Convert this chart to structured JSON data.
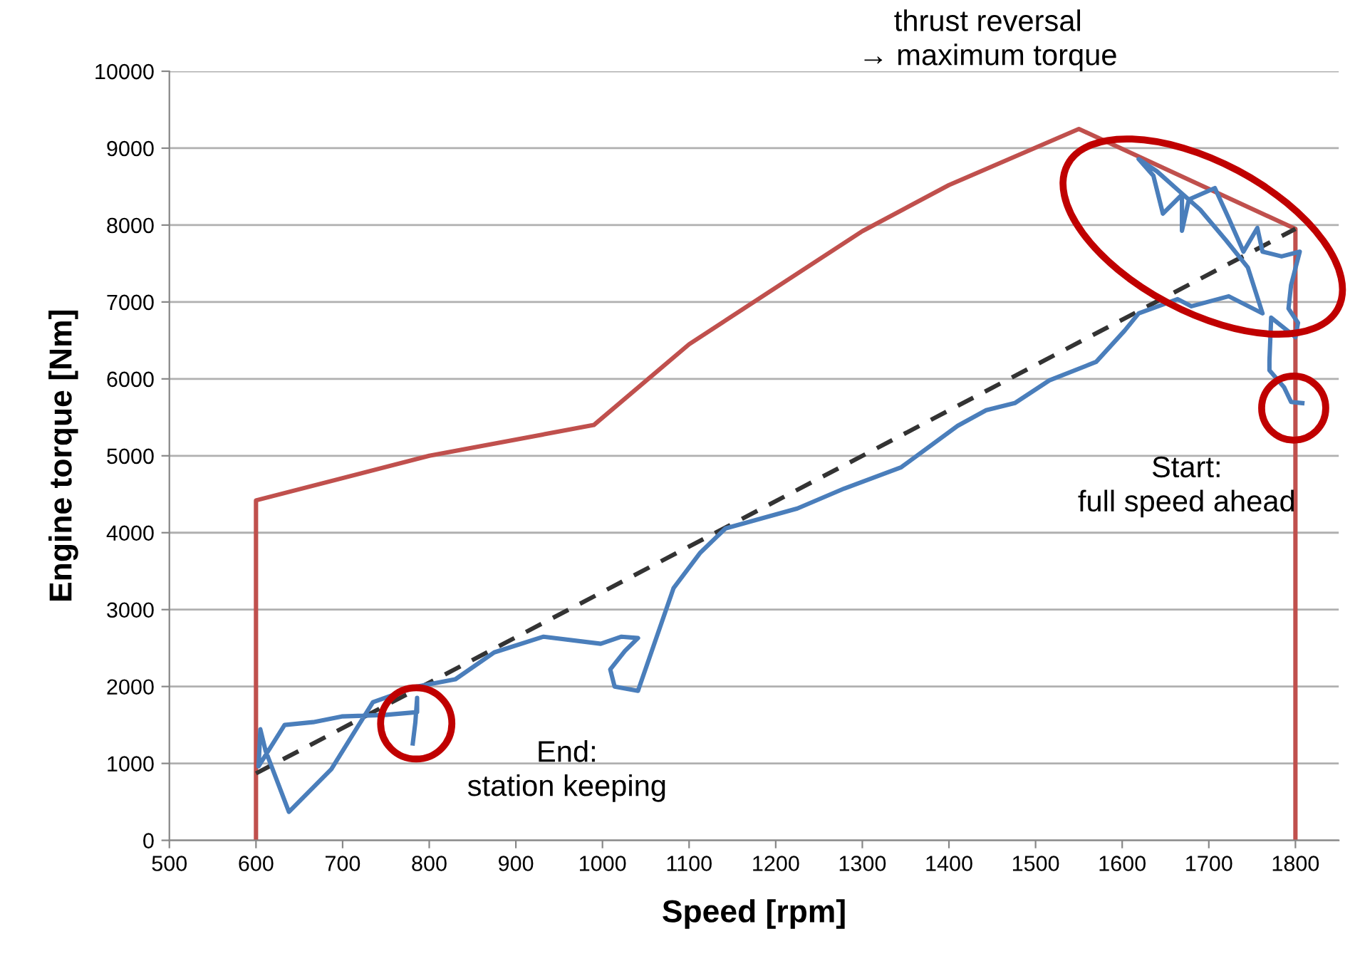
{
  "chart_data": {
    "type": "line",
    "xlabel": "Speed [rpm]",
    "ylabel": "Engine torque [Nm]",
    "xlim": [
      500,
      1850
    ],
    "xticks": [
      500,
      600,
      700,
      800,
      900,
      1000,
      1100,
      1200,
      1300,
      1400,
      1500,
      1600,
      1700,
      1800
    ],
    "ylim": [
      0,
      10000
    ],
    "yticks": [
      0,
      1000,
      2000,
      3000,
      4000,
      5000,
      6000,
      7000,
      8000,
      9000,
      10000
    ],
    "grid": "y",
    "legend": false,
    "marker": "none",
    "annotations": [
      "thrust reversal\n→ maximum torque",
      "Start:\nfull speed ahead",
      "End:\nstation keeping"
    ],
    "series": [
      {
        "color": "#c0504d",
        "line_style": "solid",
        "x": [
          600,
          600,
          800,
          990,
          1100,
          1300,
          1400,
          1550,
          1800,
          1800
        ],
        "values": [
          0,
          4420,
          5000,
          5400,
          6450,
          7920,
          8520,
          9250,
          7950,
          0
        ]
      },
      {
        "color": "#333333",
        "line_style": "dashed",
        "x": [
          600,
          1800
        ],
        "values": [
          870,
          7950
        ]
      },
      {
        "color": "#4a7ebb",
        "line_style": "solid",
        "x": [
          1808,
          1795,
          1787,
          1770,
          1770,
          1772,
          1800,
          1803,
          1792,
          1795,
          1805,
          1784,
          1762,
          1756,
          1740,
          1723,
          1707,
          1677,
          1669,
          1669,
          1647,
          1636,
          1619,
          1640,
          1660,
          1690,
          1720,
          1745,
          1762,
          1723,
          1680,
          1664,
          1619,
          1603,
          1570,
          1516,
          1476,
          1443,
          1410,
          1345,
          1279,
          1225,
          1142,
          1113,
          1082,
          1041,
          1014,
          1009,
          1026,
          1041,
          1022,
          998,
          932,
          875,
          830,
          786,
          735,
          687,
          638,
          611,
          605,
          603,
          633,
          666,
          699,
          748,
          786,
          786,
          784,
          781
        ],
        "values": [
          5685,
          5700,
          5889,
          6111,
          6241,
          6796,
          6543,
          6728,
          6914,
          7222,
          7654,
          7593,
          7654,
          7963,
          7654,
          8087,
          8481,
          8333,
          7926,
          8395,
          8148,
          8642,
          8858,
          8700,
          8500,
          8200,
          7800,
          7450,
          6852,
          7074,
          6944,
          7037,
          6852,
          6630,
          6222,
          5981,
          5685,
          5593,
          5389,
          4852,
          4574,
          4315,
          4056,
          3741,
          3278,
          1944,
          2000,
          2222,
          2463,
          2630,
          2648,
          2556,
          2648,
          2444,
          2093,
          2000,
          1796,
          926,
          370,
          1167,
          1444,
          963,
          1500,
          1537,
          1611,
          1630,
          1667,
          1852,
          1537,
          1259
        ]
      }
    ]
  }
}
